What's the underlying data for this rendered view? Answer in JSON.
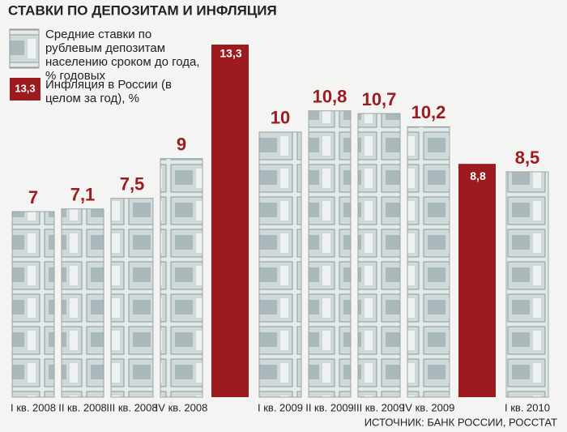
{
  "chart_data": {
    "type": "bar",
    "title": "СТАВКИ ПО ДЕПОЗИТАМ И ИНФЛЯЦИЯ",
    "source": "ИСТОЧНИК: БАНК РОССИИ, РОССТАТ",
    "categories": [
      "I кв. 2008",
      "II кв. 2008",
      "III кв. 2008",
      "IV кв. 2008",
      null,
      "I кв. 2009",
      "II кв. 2009",
      "III кв. 2009",
      "IV кв. 2009",
      null,
      "I кв. 2010"
    ],
    "series": [
      {
        "name": "Средние ставки по рублевым депозитам населению сроком до года, % годовых",
        "color": "#dfe6e6",
        "values": [
          7,
          7.1,
          7.5,
          9,
          null,
          10,
          10.8,
          10.7,
          10.2,
          null,
          8.5
        ],
        "value_labels": [
          "7",
          "7,1",
          "7,5",
          "9",
          null,
          "10",
          "10,8",
          "10,7",
          "10,2",
          null,
          "8,5"
        ]
      },
      {
        "name": "Инфляция в России (в целом за год), %",
        "color": "#9b1b1e",
        "values": [
          null,
          null,
          null,
          null,
          13.3,
          null,
          null,
          null,
          null,
          8.8,
          null
        ],
        "value_labels": [
          null,
          null,
          null,
          null,
          "13,3",
          null,
          null,
          null,
          null,
          "8,8",
          null
        ]
      }
    ]
  }
}
